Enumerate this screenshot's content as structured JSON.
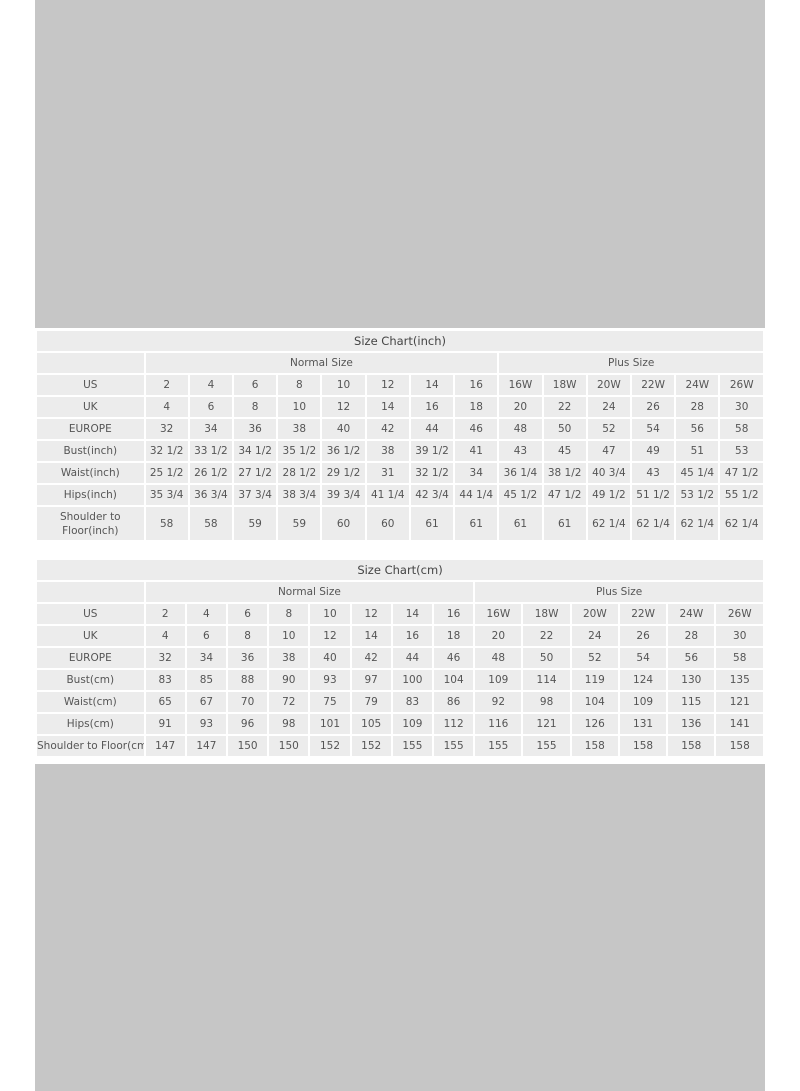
{
  "tables": [
    {
      "title": "Size Chart(inch)",
      "groups": [
        "Normal Size",
        "Plus Size"
      ],
      "rows": [
        {
          "label": "US",
          "values": [
            "2",
            "4",
            "6",
            "8",
            "10",
            "12",
            "14",
            "16",
            "16W",
            "18W",
            "20W",
            "22W",
            "24W",
            "26W"
          ]
        },
        {
          "label": "UK",
          "values": [
            "4",
            "6",
            "8",
            "10",
            "12",
            "14",
            "16",
            "18",
            "20",
            "22",
            "24",
            "26",
            "28",
            "30"
          ]
        },
        {
          "label": "EUROPE",
          "values": [
            "32",
            "34",
            "36",
            "38",
            "40",
            "42",
            "44",
            "46",
            "48",
            "50",
            "52",
            "54",
            "56",
            "58"
          ]
        },
        {
          "label": "Bust(inch)",
          "values": [
            "32 1/2",
            "33 1/2",
            "34 1/2",
            "35 1/2",
            "36 1/2",
            "38",
            "39 1/2",
            "41",
            "43",
            "45",
            "47",
            "49",
            "51",
            "53"
          ]
        },
        {
          "label": "Waist(inch)",
          "values": [
            "25 1/2",
            "26 1/2",
            "27 1/2",
            "28 1/2",
            "29 1/2",
            "31",
            "32 1/2",
            "34",
            "36 1/4",
            "38 1/2",
            "40 3/4",
            "43",
            "45 1/4",
            "47 1/2"
          ]
        },
        {
          "label": "Hips(inch)",
          "values": [
            "35 3/4",
            "36 3/4",
            "37 3/4",
            "38 3/4",
            "39 3/4",
            "41 1/4",
            "42 3/4",
            "44 1/4",
            "45 1/2",
            "47 1/2",
            "49 1/2",
            "51 1/2",
            "53 1/2",
            "55 1/2"
          ]
        },
        {
          "label": "Shoulder to Floor(inch)",
          "values": [
            "58",
            "58",
            "59",
            "59",
            "60",
            "60",
            "61",
            "61",
            "61",
            "61",
            "62 1/4",
            "62 1/4",
            "62 1/4",
            "62 1/4"
          ]
        }
      ]
    },
    {
      "title": "Size Chart(cm)",
      "groups": [
        "Normal Size",
        "Plus Size"
      ],
      "rows": [
        {
          "label": "US",
          "values": [
            "2",
            "4",
            "6",
            "8",
            "10",
            "12",
            "14",
            "16",
            "16W",
            "18W",
            "20W",
            "22W",
            "24W",
            "26W"
          ]
        },
        {
          "label": "UK",
          "values": [
            "4",
            "6",
            "8",
            "10",
            "12",
            "14",
            "16",
            "18",
            "20",
            "22",
            "24",
            "26",
            "28",
            "30"
          ]
        },
        {
          "label": "EUROPE",
          "values": [
            "32",
            "34",
            "36",
            "38",
            "40",
            "42",
            "44",
            "46",
            "48",
            "50",
            "52",
            "54",
            "56",
            "58"
          ]
        },
        {
          "label": "Bust(cm)",
          "values": [
            "83",
            "85",
            "88",
            "90",
            "93",
            "97",
            "100",
            "104",
            "109",
            "114",
            "119",
            "124",
            "130",
            "135"
          ]
        },
        {
          "label": "Waist(cm)",
          "values": [
            "65",
            "67",
            "70",
            "72",
            "75",
            "79",
            "83",
            "86",
            "92",
            "98",
            "104",
            "109",
            "115",
            "121"
          ]
        },
        {
          "label": "Hips(cm)",
          "values": [
            "91",
            "93",
            "96",
            "98",
            "101",
            "105",
            "109",
            "112",
            "116",
            "121",
            "126",
            "131",
            "136",
            "141"
          ]
        },
        {
          "label": "Shoulder to Floor(cm)",
          "values": [
            "147",
            "147",
            "150",
            "150",
            "152",
            "152",
            "155",
            "155",
            "155",
            "155",
            "158",
            "158",
            "158",
            "158"
          ]
        }
      ]
    }
  ]
}
